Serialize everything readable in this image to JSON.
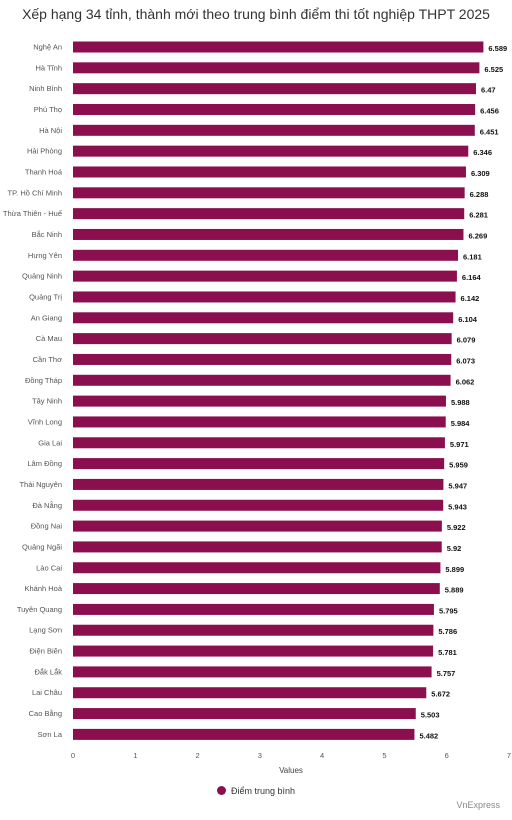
{
  "chart_data": {
    "type": "bar",
    "orientation": "horizontal",
    "title": "Xếp hạng 34 tỉnh, thành mới theo trung bình điểm thi tốt nghiệp THPT 2025",
    "xlabel": "Values",
    "ylabel": "",
    "xlim": [
      0,
      7
    ],
    "x_ticks": [
      "0",
      "1",
      "2",
      "3",
      "4",
      "5",
      "6",
      "7"
    ],
    "grid": false,
    "legend_position": "bottom",
    "bar_color": "#8b0f4e",
    "categories": [
      "Nghệ An",
      "Hà Tĩnh",
      "Ninh Bình",
      "Phú Thọ",
      "Hà Nội",
      "Hải Phòng",
      "Thanh Hoá",
      "TP. Hồ Chí Minh",
      "Thừa Thiên - Huế",
      "Bắc Ninh",
      "Hưng Yên",
      "Quảng Ninh",
      "Quảng Trị",
      "An Giang",
      "Cà Mau",
      "Cần Thơ",
      "Đồng Tháp",
      "Tây Ninh",
      "Vĩnh Long",
      "Gia Lai",
      "Lâm Đồng",
      "Thái Nguyên",
      "Đà Nẵng",
      "Đồng Nai",
      "Quảng Ngãi",
      "Lào Cai",
      "Khánh Hoà",
      "Tuyên Quang",
      "Lạng Sơn",
      "Điện Biên",
      "Đắk Lắk",
      "Lai Châu",
      "Cao Bằng",
      "Sơn La"
    ],
    "series": [
      {
        "name": "Điểm trung bình",
        "values": [
          6.589,
          6.525,
          6.47,
          6.456,
          6.451,
          6.346,
          6.309,
          6.288,
          6.281,
          6.269,
          6.181,
          6.164,
          6.142,
          6.104,
          6.079,
          6.073,
          6.062,
          5.988,
          5.984,
          5.971,
          5.959,
          5.947,
          5.943,
          5.922,
          5.92,
          5.899,
          5.889,
          5.795,
          5.786,
          5.781,
          5.757,
          5.672,
          5.503,
          5.482
        ],
        "value_labels": [
          "6.589",
          "6.525",
          "6.47",
          "6.456",
          "6.451",
          "6.346",
          "6.309",
          "6.288",
          "6.281",
          "6.269",
          "6.181",
          "6.164",
          "6.142",
          "6.104",
          "6.079",
          "6.073",
          "6.062",
          "5.988",
          "5.984",
          "5.971",
          "5.959",
          "5.947",
          "5.943",
          "5.922",
          "5.92",
          "5.899",
          "5.889",
          "5.795",
          "5.786",
          "5.781",
          "5.757",
          "5.672",
          "5.503",
          "5.482"
        ]
      }
    ]
  },
  "source": "VnExpress"
}
